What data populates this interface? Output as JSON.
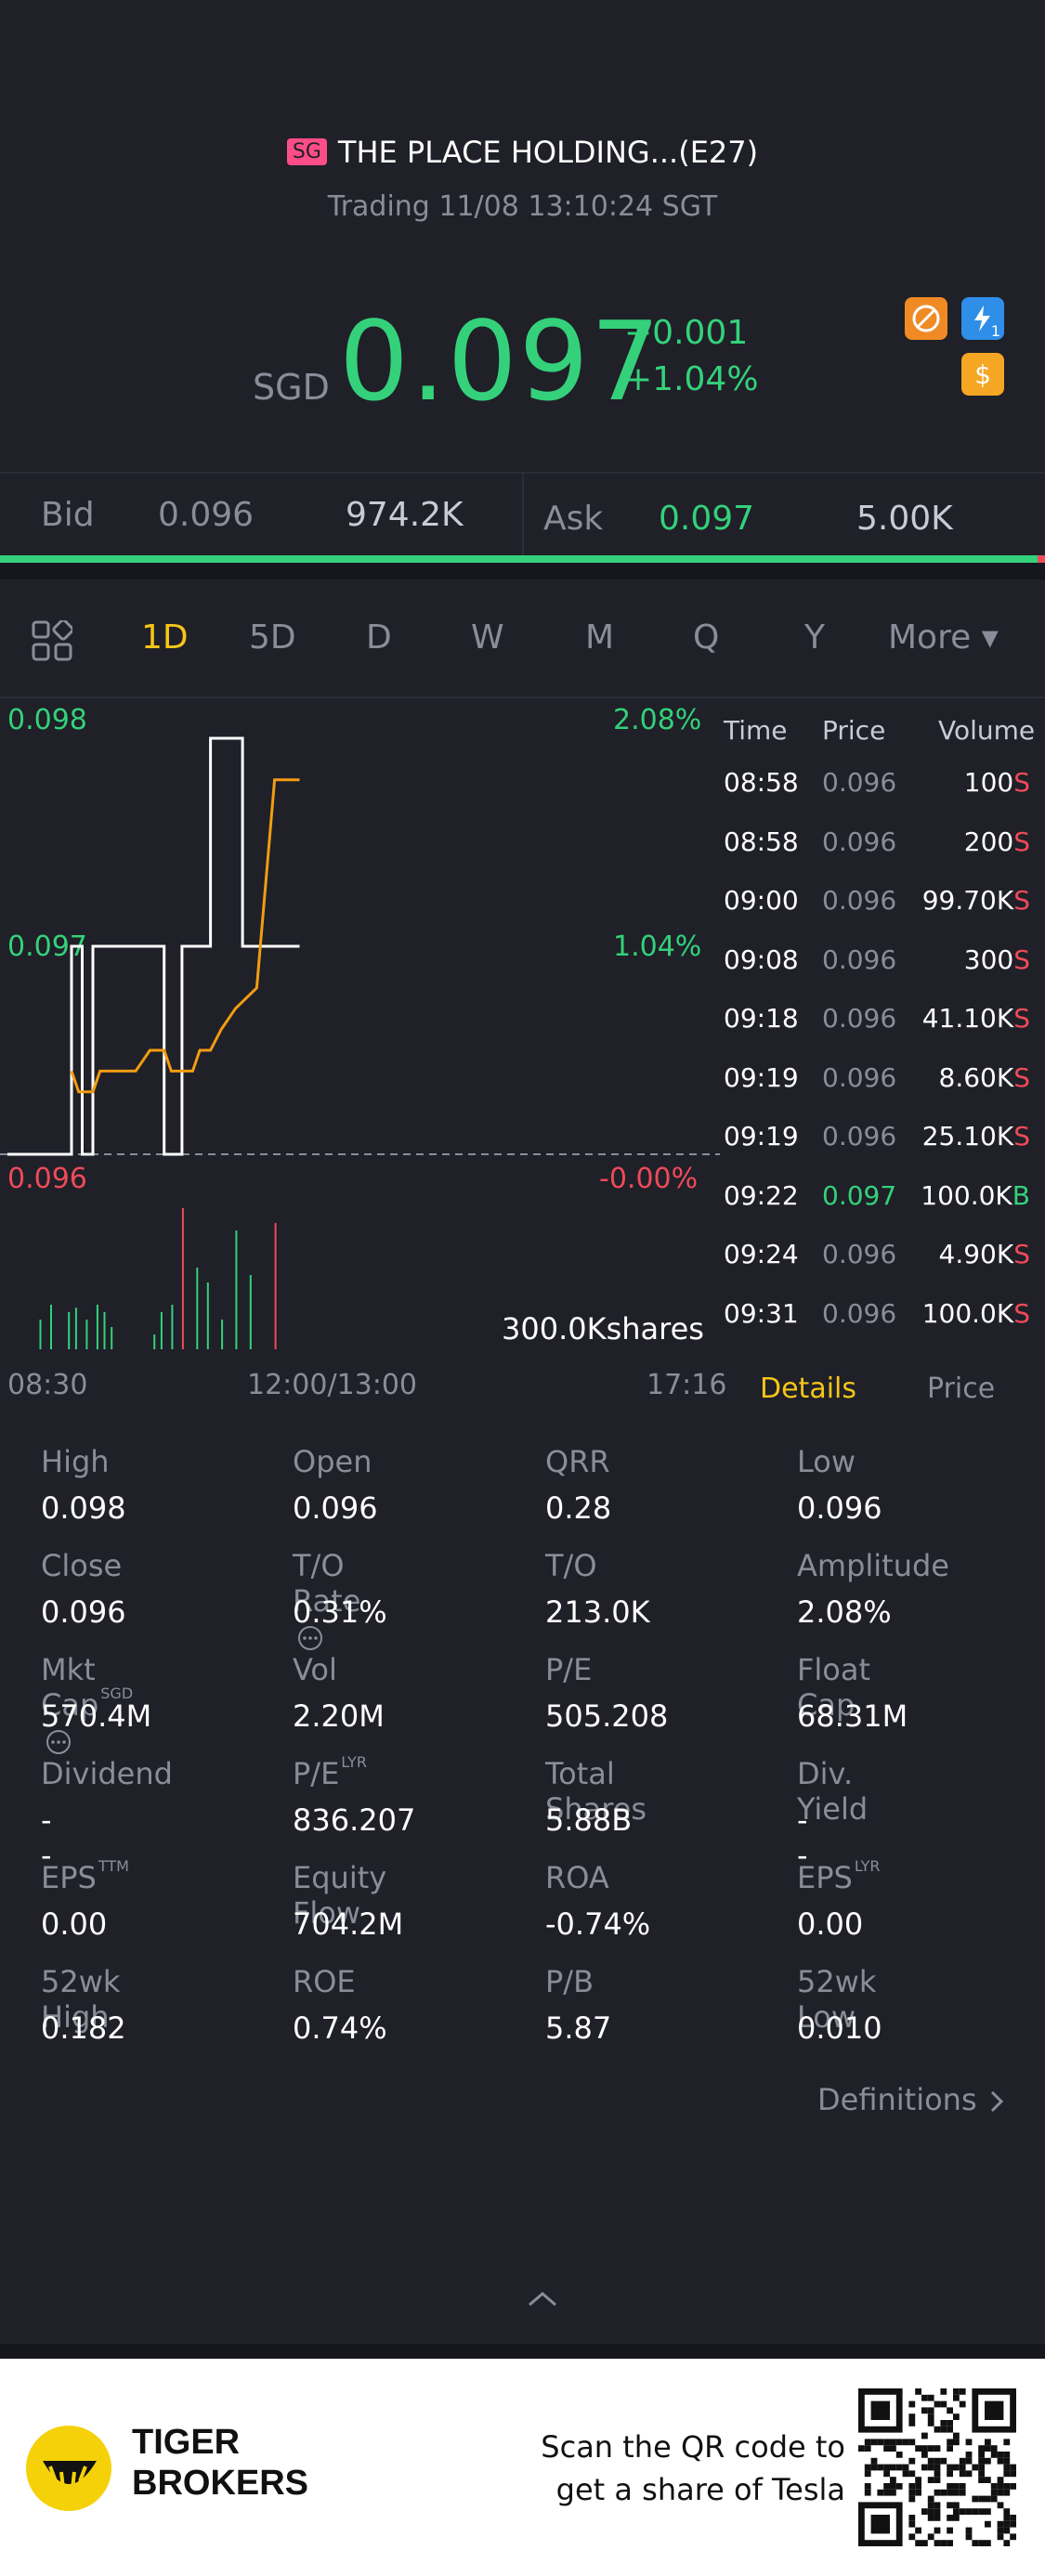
{
  "header": {
    "market_badge": "SG",
    "stock_name": "THE PLACE HOLDING...(E27)",
    "status": "Trading 11/08 13:10:24 SGT",
    "currency": "SGD",
    "price": "0.097",
    "change_abs": "+0.001",
    "change_pct": "+1.04%",
    "icons": [
      "no-short-icon",
      "lightning-level1-icon",
      "dollar-icon"
    ],
    "icon_level": "1",
    "icon_dollar": "$"
  },
  "bidask": {
    "bid_label": "Bid",
    "bid_price": "0.096",
    "bid_volume": "974.2K",
    "ask_label": "Ask",
    "ask_price": "0.097",
    "ask_volume": "5.00K"
  },
  "tabs": {
    "items": [
      "1D",
      "5D",
      "D",
      "W",
      "M",
      "Q",
      "Y",
      "More ▾"
    ],
    "active": "1D"
  },
  "chart_data": {
    "type": "line",
    "y_labels_left": [
      "0.098",
      "0.097",
      "0.096"
    ],
    "y_labels_right": [
      "2.08%",
      "1.04%",
      "-0.00%"
    ],
    "x_labels": [
      "08:30",
      "12:00/13:00",
      "17:16"
    ],
    "volume_label": "300.0Kshares",
    "ylim": [
      0.096,
      0.098
    ],
    "series": [
      {
        "color": "#ffffff",
        "x": [
          0,
          0.09,
          0.09,
          0.105,
          0.105,
          0.12,
          0.12,
          0.22,
          0.22,
          0.245,
          0.245,
          0.285,
          0.285,
          0.33,
          0.33,
          0.375,
          0.375,
          0.41
        ],
        "values": [
          0.096,
          0.096,
          0.097,
          0.097,
          0.096,
          0.096,
          0.097,
          0.097,
          0.096,
          0.096,
          0.097,
          0.097,
          0.098,
          0.098,
          0.097,
          0.097,
          0.097,
          0.097
        ]
      },
      {
        "color": "#f39c12",
        "x": [
          0.09,
          0.1,
          0.12,
          0.13,
          0.16,
          0.18,
          0.2,
          0.22,
          0.23,
          0.26,
          0.27,
          0.285,
          0.3,
          0.32,
          0.35,
          0.375,
          0.41
        ],
        "values": [
          0.0964,
          0.0963,
          0.0963,
          0.0964,
          0.0964,
          0.0964,
          0.0965,
          0.0965,
          0.0964,
          0.0964,
          0.0965,
          0.0965,
          0.0966,
          0.0967,
          0.0968,
          0.0978,
          0.0978
        ]
      }
    ],
    "volume_bars": [
      {
        "x": 0.045,
        "h": 0.2,
        "c": "green"
      },
      {
        "x": 0.06,
        "h": 0.3,
        "c": "green"
      },
      {
        "x": 0.085,
        "h": 0.25,
        "c": "green"
      },
      {
        "x": 0.095,
        "h": 0.28,
        "c": "green"
      },
      {
        "x": 0.11,
        "h": 0.2,
        "c": "green"
      },
      {
        "x": 0.125,
        "h": 0.3,
        "c": "green"
      },
      {
        "x": 0.135,
        "h": 0.25,
        "c": "green"
      },
      {
        "x": 0.145,
        "h": 0.15,
        "c": "green"
      },
      {
        "x": 0.205,
        "h": 0.1,
        "c": "green"
      },
      {
        "x": 0.215,
        "h": 0.25,
        "c": "green"
      },
      {
        "x": 0.23,
        "h": 0.3,
        "c": "green"
      },
      {
        "x": 0.245,
        "h": 0.95,
        "c": "red"
      },
      {
        "x": 0.265,
        "h": 0.55,
        "c": "green"
      },
      {
        "x": 0.28,
        "h": 0.45,
        "c": "green"
      },
      {
        "x": 0.3,
        "h": 0.2,
        "c": "green"
      },
      {
        "x": 0.32,
        "h": 0.8,
        "c": "green"
      },
      {
        "x": 0.34,
        "h": 0.5,
        "c": "green"
      },
      {
        "x": 0.375,
        "h": 0.85,
        "c": "red"
      }
    ]
  },
  "ticks": {
    "headers": [
      "Time",
      "Price",
      "Volume"
    ],
    "rows": [
      {
        "time": "08:58",
        "price": "0.096",
        "vol": "100",
        "side": "S"
      },
      {
        "time": "08:58",
        "price": "0.096",
        "vol": "200",
        "side": "S"
      },
      {
        "time": "09:00",
        "price": "0.096",
        "vol": "99.70K",
        "side": "S"
      },
      {
        "time": "09:08",
        "price": "0.096",
        "vol": "300",
        "side": "S"
      },
      {
        "time": "09:18",
        "price": "0.096",
        "vol": "41.10K",
        "side": "S"
      },
      {
        "time": "09:19",
        "price": "0.096",
        "vol": "8.60K",
        "side": "S"
      },
      {
        "time": "09:19",
        "price": "0.096",
        "vol": "25.10K",
        "side": "S"
      },
      {
        "time": "09:22",
        "price": "0.097",
        "vol": "100.0K",
        "side": "B"
      },
      {
        "time": "09:24",
        "price": "0.096",
        "vol": "4.90K",
        "side": "S"
      },
      {
        "time": "09:31",
        "price": "0.096",
        "vol": "100.0K",
        "side": "S"
      }
    ],
    "tab_details": "Details",
    "tab_price": "Price"
  },
  "details": [
    [
      {
        "l": "High",
        "v": "0.098"
      },
      {
        "l": "Open",
        "v": "0.096"
      },
      {
        "l": "QRR",
        "v": "0.28"
      },
      {
        "l": "Low",
        "v": "0.096"
      }
    ],
    [
      {
        "l": "Close",
        "v": "0.096"
      },
      {
        "l": "T/O Rate",
        "v": "0.31%"
      },
      {
        "l": "T/O",
        "v": "213.0K"
      },
      {
        "l": "Amplitude",
        "v": "2.08%"
      }
    ],
    [
      {
        "l": "Mkt Cap",
        "v": "570.4M"
      },
      {
        "l": "Vol",
        "v": "2.20M"
      },
      {
        "l": "P/E",
        "v": "505.208"
      },
      {
        "l": "Float Cap",
        "v": "68.31M"
      }
    ],
    [
      {
        "l": "Dividend",
        "v": "--"
      },
      {
        "l": "P/E",
        "v": "836.207"
      },
      {
        "l": "Total Shares",
        "v": "5.88B"
      },
      {
        "l": "Div. Yield",
        "v": "--"
      }
    ],
    [
      {
        "l": "EPS",
        "v": "0.00"
      },
      {
        "l": "Equity Flow",
        "v": "704.2M"
      },
      {
        "l": "ROA",
        "v": "-0.74%"
      },
      {
        "l": "EPS",
        "v": "0.00"
      }
    ],
    [
      {
        "l": "52wk High",
        "v": "0.182"
      },
      {
        "l": "ROE",
        "v": "0.74%"
      },
      {
        "l": "P/B",
        "v": "5.87"
      },
      {
        "l": "52wk Low",
        "v": "0.010"
      }
    ]
  ],
  "superscripts": {
    "mktcap": "SGD",
    "pe_lyr": "LYR",
    "eps_ttm": "TTM",
    "eps_lyr": "LYR"
  },
  "definitions_link": "Definitions",
  "footer": {
    "brand_line1": "TIGER",
    "brand_line2": "BROKERS",
    "promo_line1": "Scan the QR code to",
    "promo_line2": "get a share of Tesla"
  }
}
